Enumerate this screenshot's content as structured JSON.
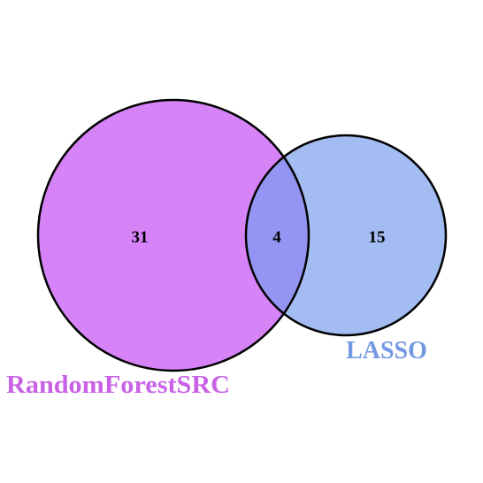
{
  "sets": [
    {
      "name": "RandomForestSRC",
      "color": "#d583f7"
    },
    {
      "name": "LASSO",
      "color": "#a3bcf2"
    }
  ],
  "regions": {
    "randomforestsrc_only": "31",
    "intersection": "4",
    "lasso_only": "15"
  },
  "colors": {
    "outline": "#000000",
    "intersection_fill": "#9494f2",
    "label_randomforestsrc": "#c962e6",
    "label_lasso": "#7499e3"
  }
}
